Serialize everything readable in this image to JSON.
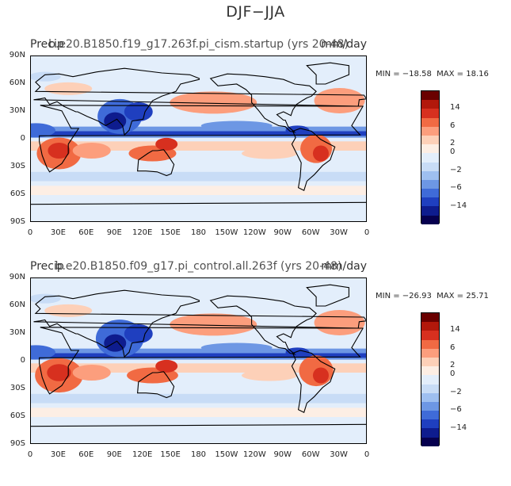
{
  "title": "DJF−JJA",
  "panels": [
    {
      "left_title": "Precip",
      "center_title": "b.e20.B1850.f19_g17.263f.pi_cism.startup (yrs 20-48)",
      "right_title": "mm/day",
      "min_label": "MIN = −18.58",
      "max_label": "MAX = 18.16"
    },
    {
      "left_title": "Precip",
      "center_title": "b.e20.B1850.f09_g17.pi_control.all.263f (yrs 20-48)",
      "right_title": "mm/day",
      "min_label": "MIN = −26.93",
      "max_label": "MAX = 25.71"
    }
  ],
  "lat_ticks": [
    "90N",
    "60N",
    "30N",
    "0",
    "30S",
    "60S",
    "90S"
  ],
  "lon_ticks": [
    "0",
    "30E",
    "60E",
    "90E",
    "120E",
    "150E",
    "180",
    "150W",
    "120W",
    "90W",
    "60W",
    "30W",
    "0"
  ],
  "colorbar_labels": [
    "14",
    "6",
    "2",
    "0",
    "−2",
    "−6",
    "−14"
  ],
  "colorbar_colors": [
    "#6a0000",
    "#b2180b",
    "#d7301f",
    "#f16a43",
    "#fc9e7d",
    "#fdd0b8",
    "#fdeee4",
    "#e3eefb",
    "#c8dcf6",
    "#9ebff0",
    "#6d97e4",
    "#3f6bd8",
    "#1f3fbf",
    "#0e1c8e",
    "#06004f"
  ],
  "chart_data": {
    "type": "heatmap",
    "title": "DJF−JJA",
    "variable": "Precip",
    "units": "mm/day",
    "xlabel": "",
    "ylabel": "",
    "xlim": [
      0,
      360
    ],
    "ylim": [
      -90,
      90
    ],
    "contour_levels": [
      -14,
      -10,
      -6,
      -4,
      -2,
      -1,
      0,
      1,
      2,
      4,
      6,
      10,
      14
    ],
    "panels": [
      {
        "case": "b.e20.B1850.f19_g17.263f.pi_cism.startup (yrs 20-48)",
        "min": -18.58,
        "max": 18.16
      },
      {
        "case": "b.e20.B1850.f09_g17.pi_control.all.263f (yrs 20-48)",
        "min": -26.93,
        "max": 25.71
      }
    ]
  }
}
